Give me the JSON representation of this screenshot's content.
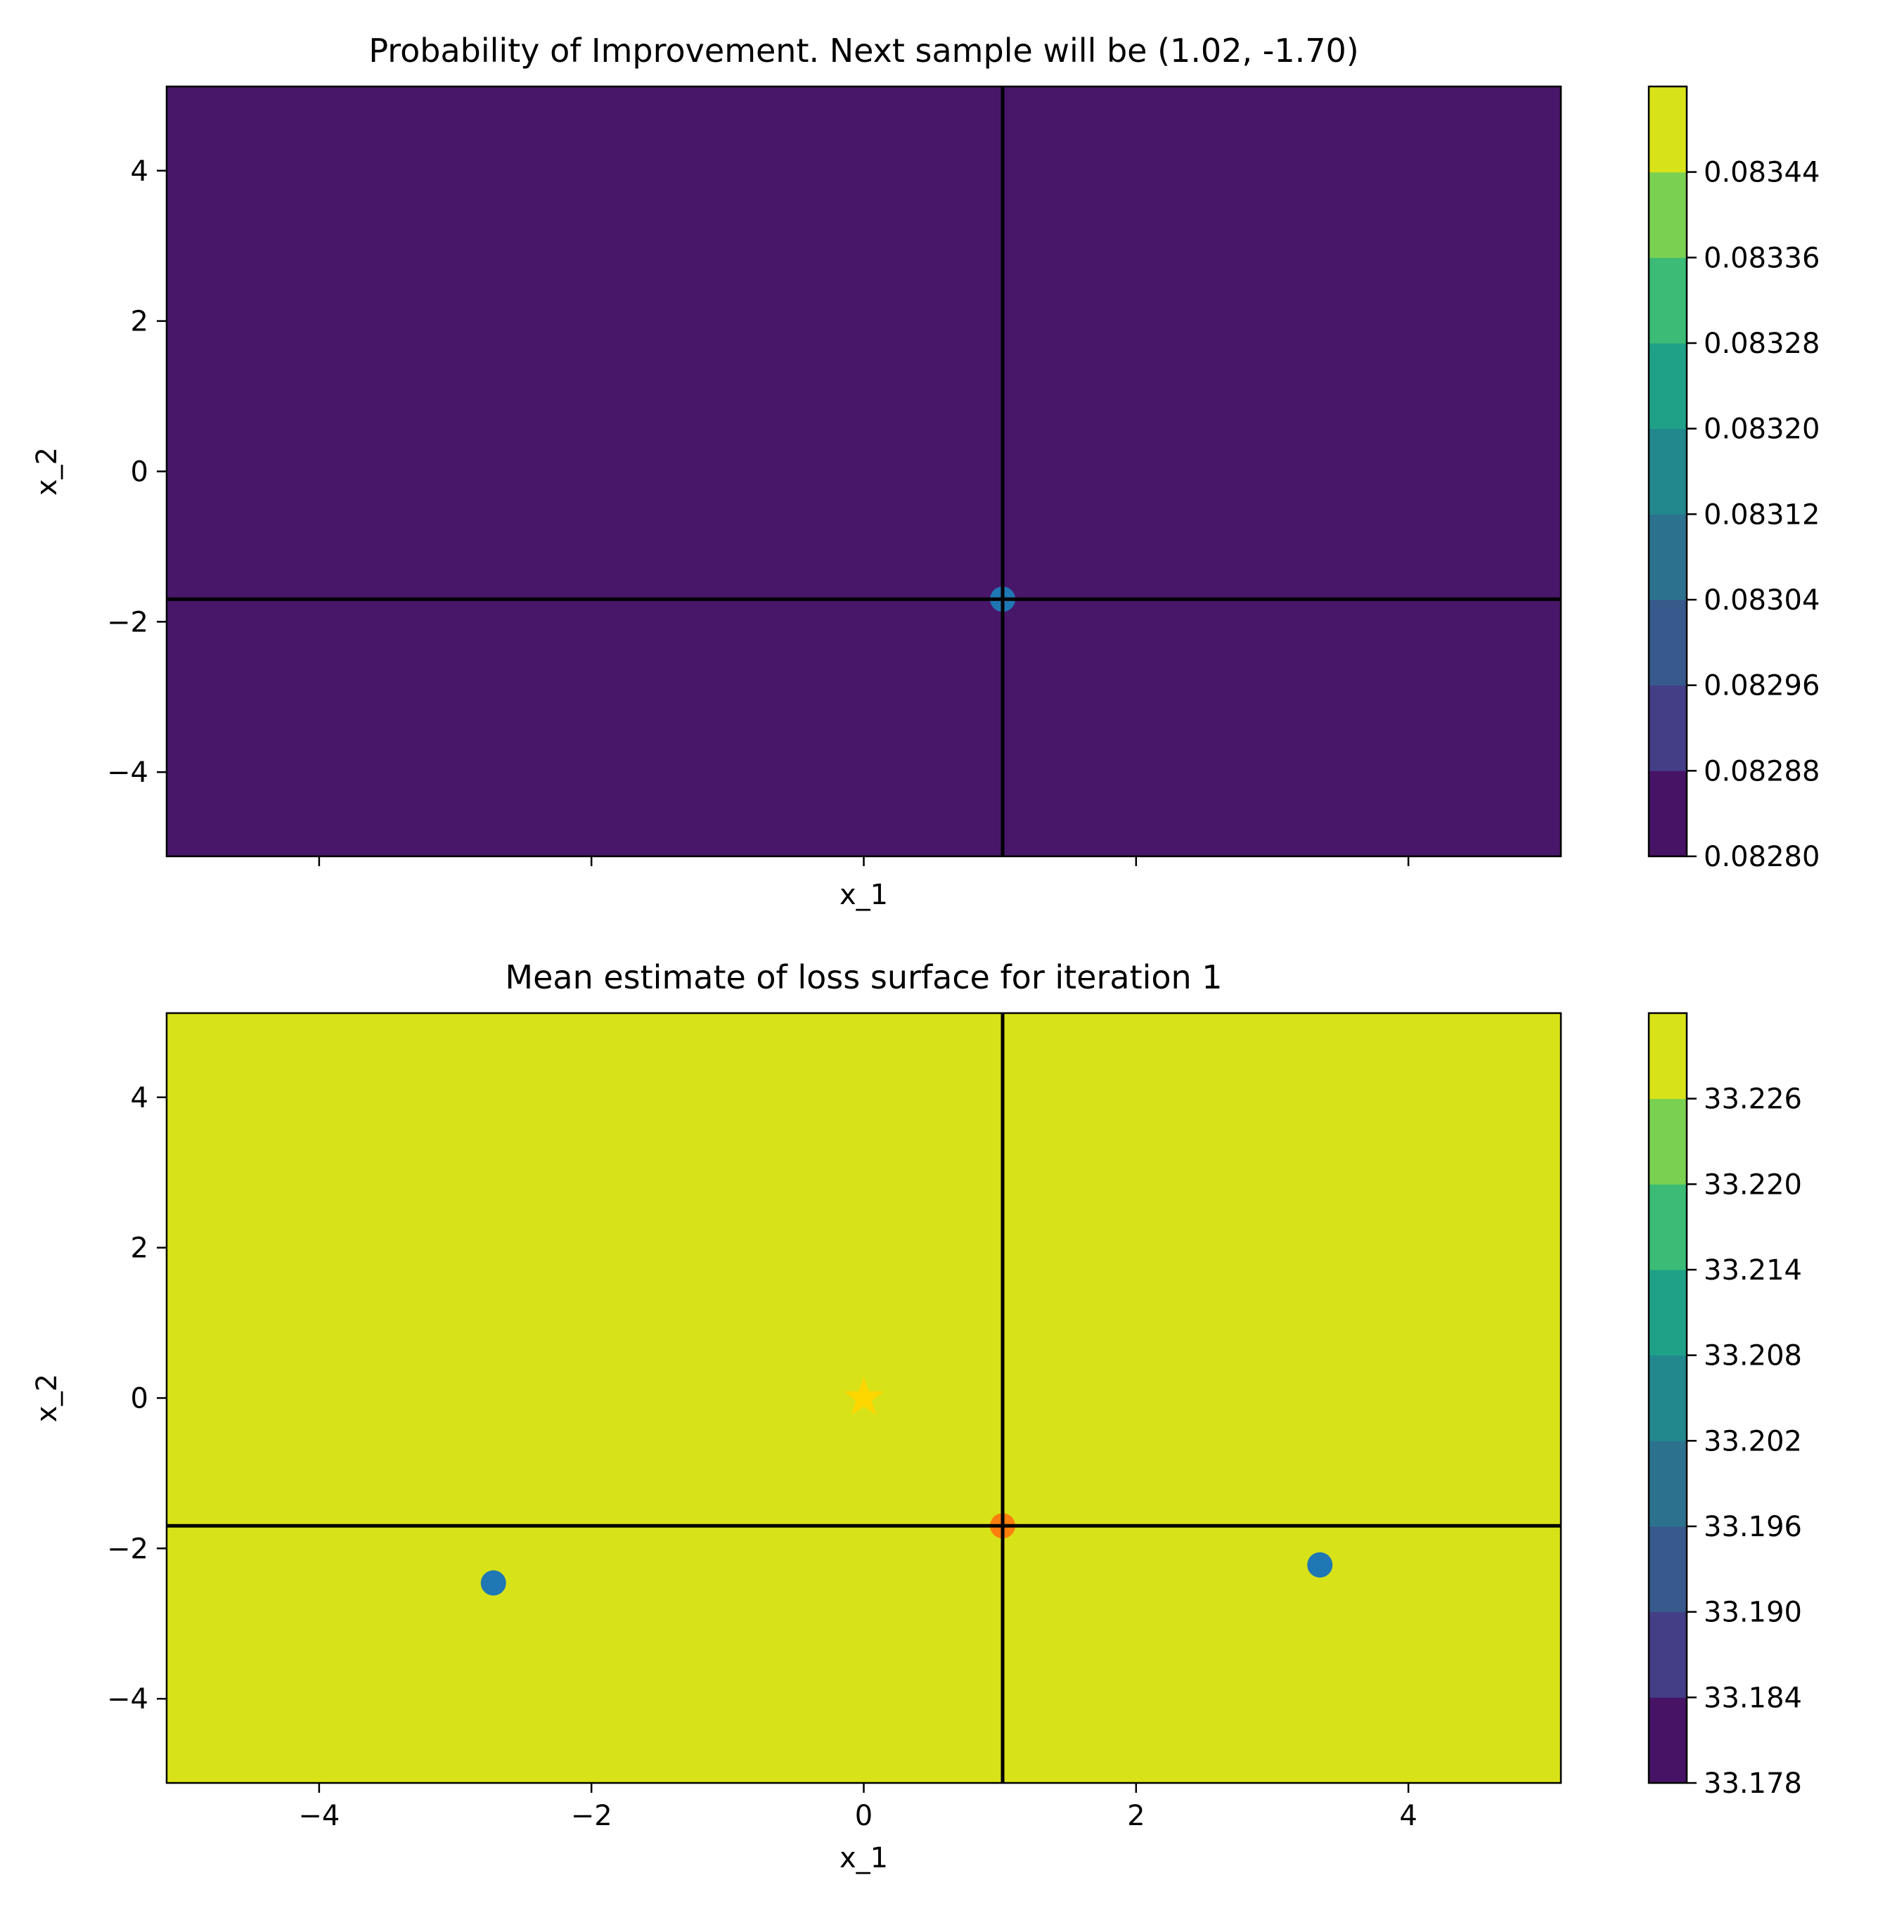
{
  "chart_data": [
    {
      "type": "heatmap",
      "title": "Probability of Improvement. Next sample will be (1.02, -1.70)",
      "xlabel": "x_1",
      "ylabel": "x_2",
      "xlim": [
        -5.12,
        5.12
      ],
      "ylim": [
        -5.12,
        5.12
      ],
      "x_ticks": [
        -4,
        -2,
        0,
        2,
        4
      ],
      "x_tick_labels_shown": false,
      "y_ticks": [
        -4,
        -2,
        0,
        2,
        4
      ],
      "y_tick_labels": [
        "−4",
        "−2",
        "0",
        "2",
        "4"
      ],
      "fill_color": "#481769",
      "crosshair": {
        "x": 1.02,
        "y": -1.7,
        "color": "#000000"
      },
      "points": [
        {
          "x": 1.02,
          "y": -1.7,
          "color": "#1f77b4",
          "marker": "circle"
        }
      ],
      "colorbar": {
        "levels": [
          0.0828,
          0.08288,
          0.08296,
          0.08304,
          0.08312,
          0.0832,
          0.08328,
          0.08336,
          0.08344
        ],
        "labels": [
          "0.08280",
          "0.08288",
          "0.08296",
          "0.08304",
          "0.08312",
          "0.08320",
          "0.08328",
          "0.08336",
          "0.08344"
        ],
        "colors": [
          "#471365",
          "#433e85",
          "#38598c",
          "#2c728e",
          "#23888e",
          "#1fa188",
          "#3bbb75",
          "#7ad151",
          "#d8e219"
        ]
      }
    },
    {
      "type": "heatmap",
      "title": "Mean estimate of loss surface for iteration 1",
      "xlabel": "x_1",
      "ylabel": "x_2",
      "xlim": [
        -5.12,
        5.12
      ],
      "ylim": [
        -5.12,
        5.12
      ],
      "x_ticks": [
        -4,
        -2,
        0,
        2,
        4
      ],
      "x_tick_labels": [
        "−4",
        "−2",
        "0",
        "2",
        "4"
      ],
      "y_ticks": [
        -4,
        -2,
        0,
        2,
        4
      ],
      "y_tick_labels": [
        "−4",
        "−2",
        "0",
        "2",
        "4"
      ],
      "fill_color": "#d8e219",
      "crosshair": {
        "x": 1.02,
        "y": -1.7,
        "color": "#000000"
      },
      "points": [
        {
          "x": -2.72,
          "y": -2.46,
          "color": "#1f77b4",
          "marker": "circle"
        },
        {
          "x": 3.35,
          "y": -2.22,
          "color": "#1f77b4",
          "marker": "circle"
        },
        {
          "x": 1.02,
          "y": -1.7,
          "color": "#ff7f0e",
          "marker": "circle"
        },
        {
          "x": 0.0,
          "y": 0.0,
          "color": "#ffd700",
          "marker": "star"
        }
      ],
      "colorbar": {
        "levels": [
          33.178,
          33.184,
          33.19,
          33.196,
          33.202,
          33.208,
          33.214,
          33.22,
          33.226
        ],
        "labels": [
          "33.178",
          "33.184",
          "33.190",
          "33.196",
          "33.202",
          "33.208",
          "33.214",
          "33.220",
          "33.226"
        ],
        "colors": [
          "#471365",
          "#433e85",
          "#38598c",
          "#2c728e",
          "#23888e",
          "#1fa188",
          "#3bbb75",
          "#7ad151",
          "#d8e219"
        ]
      }
    }
  ]
}
